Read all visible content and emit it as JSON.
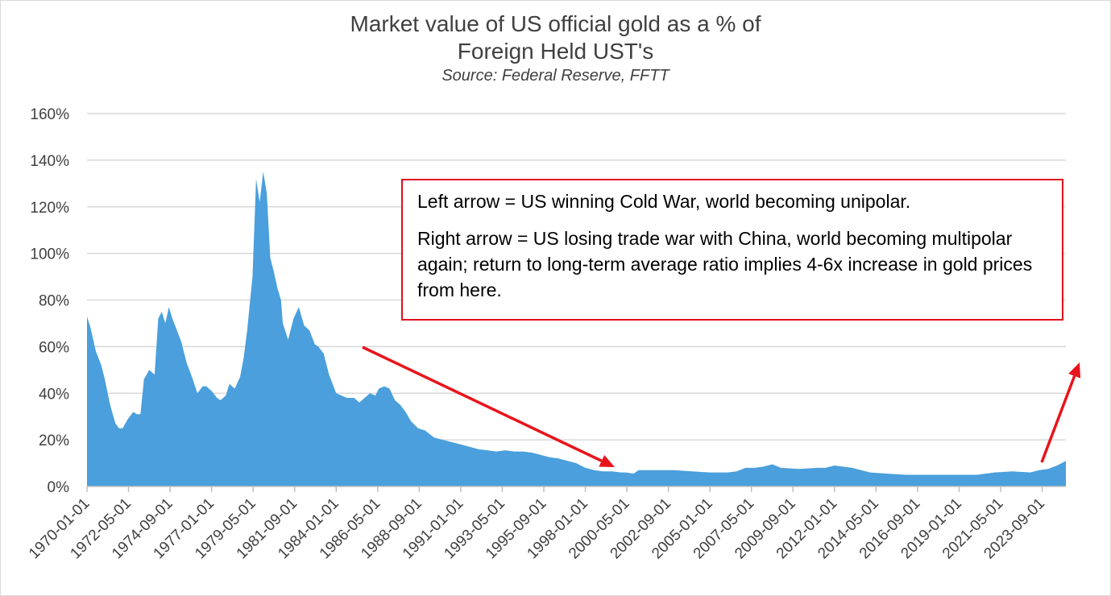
{
  "chart_data": {
    "type": "area",
    "title_line1": "Market value of US official gold as a % of",
    "title_line2": "Foreign Held UST's",
    "subtitle": "Source:  Federal Reserve, FFTT",
    "xlabel": "",
    "ylabel": "",
    "ylim": [
      0,
      160
    ],
    "y_ticks": [
      "0%",
      "20%",
      "40%",
      "60%",
      "80%",
      "100%",
      "120%",
      "140%",
      "160%"
    ],
    "x_ticks": [
      "1970-01-01",
      "1972-05-01",
      "1974-09-01",
      "1977-01-01",
      "1979-05-01",
      "1981-09-01",
      "1984-01-01",
      "1986-05-01",
      "1988-09-01",
      "1991-01-01",
      "1993-05-01",
      "1995-09-01",
      "1998-01-01",
      "2000-05-01",
      "2002-09-01",
      "2005-01-01",
      "2007-05-01",
      "2009-09-01",
      "2012-01-01",
      "2014-05-01",
      "2016-09-01",
      "2019-01-01",
      "2021-05-01",
      "2023-09-01"
    ],
    "grid": true,
    "fill_color": "#4a9fdc",
    "arrow_color": "#e8141c",
    "series": [
      {
        "x": [
          1970.0,
          1970.2,
          1970.5,
          1970.8,
          1971.0,
          1971.3,
          1971.6,
          1971.8,
          1972.0,
          1972.3,
          1972.6,
          1972.8,
          1973.0,
          1973.2,
          1973.5,
          1973.8,
          1974.0,
          1974.2,
          1974.4,
          1974.6,
          1974.8,
          1975.0,
          1975.3,
          1975.6,
          1975.9,
          1976.2,
          1976.5,
          1976.7,
          1977.0,
          1977.3,
          1977.5,
          1977.8,
          1978.0,
          1978.3,
          1978.6,
          1978.8,
          1979.0,
          1979.3,
          1979.5,
          1979.7,
          1979.9,
          1980.1,
          1980.3,
          1980.5,
          1980.7,
          1980.9,
          1981.0,
          1981.3,
          1981.6,
          1981.9,
          1982.2,
          1982.5,
          1982.8,
          1983.0,
          1983.3,
          1983.6,
          1984.0,
          1984.3,
          1984.6,
          1985.0,
          1985.3,
          1985.6,
          1985.9,
          1986.2,
          1986.4,
          1986.7,
          1987.0,
          1987.3,
          1987.6,
          1987.9,
          1988.2,
          1988.6,
          1989.0,
          1989.5,
          1990.0,
          1990.5,
          1991.0,
          1991.5,
          1992.0,
          1992.5,
          1993.0,
          1993.5,
          1994.0,
          1994.5,
          1995.0,
          1995.5,
          1996.0,
          1996.5,
          1997.0,
          1997.5,
          1998.0,
          1998.5,
          1999.0,
          1999.5,
          2000.0,
          2000.3,
          2000.7,
          2001.0,
          2002.0,
          2003.0,
          2004.0,
          2005.0,
          2006.0,
          2006.5,
          2007.0,
          2007.5,
          2008.0,
          2008.5,
          2009.0,
          2010.0,
          2011.0,
          2011.5,
          2012.0,
          2013.0,
          2014.0,
          2015.0,
          2016.0,
          2017.0,
          2018.0,
          2019.0,
          2020.0,
          2021.0,
          2022.0,
          2023.0,
          2023.5,
          2024.0,
          2024.5,
          2025.0
        ],
        "y": [
          73,
          68,
          58,
          52,
          46,
          35,
          27,
          25,
          25,
          29,
          32,
          31,
          31,
          46,
          50,
          48,
          72,
          75,
          70,
          77,
          72,
          68,
          62,
          53,
          47,
          40,
          43,
          43,
          41,
          38,
          37,
          39,
          44,
          42,
          47,
          55,
          67,
          90,
          132,
          122,
          135,
          126,
          98,
          92,
          85,
          80,
          70,
          63,
          72,
          77,
          69,
          67,
          61,
          60,
          57,
          48,
          40,
          39,
          38,
          38,
          36,
          38,
          40,
          39,
          42,
          43,
          42,
          37,
          35,
          32,
          28,
          25,
          24,
          21,
          20,
          19,
          18,
          17,
          16,
          15.5,
          15,
          15.5,
          15,
          15,
          14.5,
          13.5,
          12.5,
          12,
          11,
          10,
          8,
          7,
          6.5,
          6.5,
          6,
          6,
          5.5,
          7,
          7,
          7,
          6.5,
          6,
          6,
          6.5,
          8,
          8,
          8.5,
          9.5,
          8,
          7.5,
          8,
          8,
          9,
          8,
          6,
          5.5,
          5,
          5,
          5,
          5,
          5,
          6,
          6.5,
          6,
          7,
          7.5,
          9,
          11
        ]
      }
    ],
    "annotation": {
      "line1": "Left arrow = US winning Cold War, world becoming unipolar.",
      "line2": "Right arrow = US losing trade war with China, world becoming multipolar again; return to long-term average ratio implies 4-6x increase in gold prices from here."
    }
  }
}
